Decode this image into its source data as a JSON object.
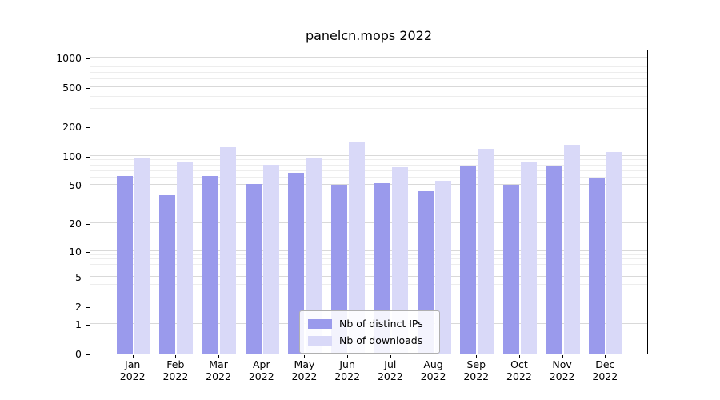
{
  "chart_data": {
    "type": "bar",
    "title": "panelcn.mops 2022",
    "categories": [
      "Jan 2022",
      "Feb 2022",
      "Mar 2022",
      "Apr 2022",
      "May 2022",
      "Jun 2022",
      "Jul 2022",
      "Aug 2022",
      "Sep 2022",
      "Oct 2022",
      "Nov 2022",
      "Dec 2022"
    ],
    "series": [
      {
        "name": "Nb of distinct IPs",
        "color": "#9a9aec",
        "values": [
          62,
          39,
          62,
          51,
          67,
          50,
          52,
          43,
          80,
          50,
          78,
          60
        ]
      },
      {
        "name": "Nb of downloads",
        "color": "#d9d9f8",
        "values": [
          95,
          88,
          123,
          81,
          96,
          138,
          76,
          56,
          118,
          85,
          130,
          110
        ]
      }
    ],
    "yscale": "log1p",
    "yticks": [
      0,
      1,
      2,
      5,
      10,
      20,
      50,
      100,
      200,
      500,
      1000
    ],
    "ylim": [
      0,
      1200
    ],
    "xlabel": "",
    "ylabel": "",
    "grid": true,
    "legend_position": "lower center",
    "colors": {
      "axis": "#000000",
      "grid_major": "#d9d9d9",
      "grid_minor": "#ededed",
      "legend_border": "#b0b0b0"
    }
  }
}
